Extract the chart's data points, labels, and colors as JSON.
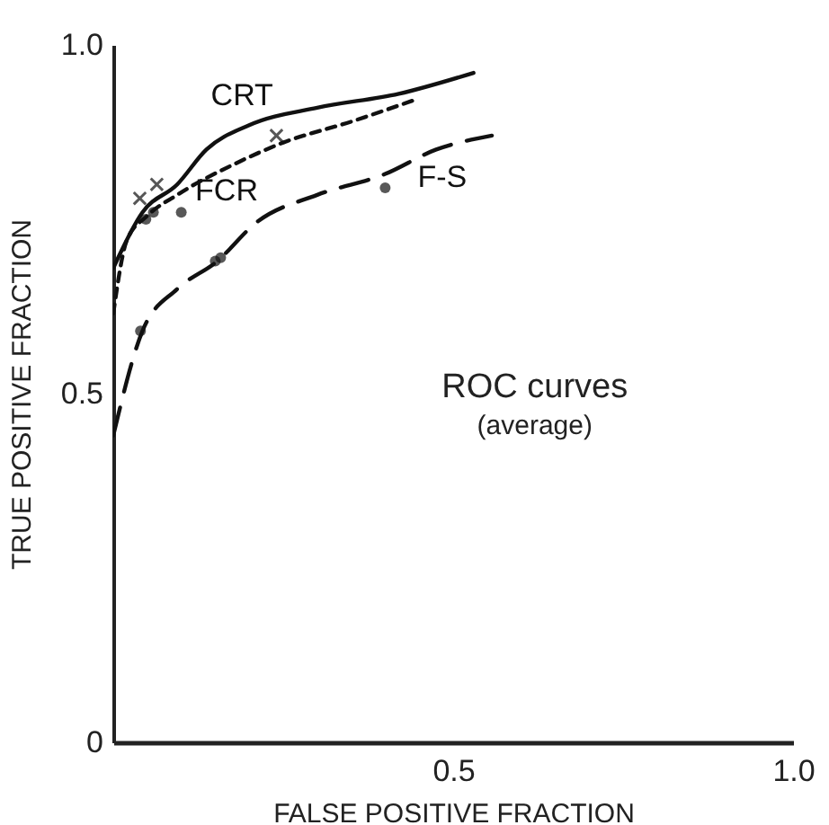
{
  "chart_data": {
    "type": "line",
    "xlabel": "FALSE POSITIVE FRACTION",
    "ylabel": "TRUE POSITIVE FRACTION",
    "annotations": [
      "ROC curves",
      "(average)"
    ],
    "xlim": [
      0,
      1
    ],
    "ylim": [
      0,
      1
    ],
    "xticks": [
      0.5,
      {
        "value": 1,
        "label": "1.0"
      }
    ],
    "yticks": [
      0,
      0.5,
      {
        "value": 1,
        "label": "1.0"
      }
    ],
    "series": [
      {
        "name": "CRT",
        "line_style": "solid",
        "color": "#111111",
        "x": [
          0,
          0.043,
          0.094,
          0.137,
          0.2,
          0.3,
          0.42,
          0.53
        ],
        "values": [
          0.68,
          0.76,
          0.8,
          0.85,
          0.885,
          0.91,
          0.93,
          0.96
        ]
      },
      {
        "name": "FCR",
        "line_style": "dotted",
        "color": "#111111",
        "x": [
          0,
          0.02,
          0.05,
          0.094,
          0.18,
          0.25,
          0.35,
          0.44
        ],
        "values": [
          0.615,
          0.72,
          0.755,
          0.785,
          0.83,
          0.86,
          0.89,
          0.92
        ]
      },
      {
        "name": "F-S",
        "line_style": "dashed",
        "color": "#111111",
        "x": [
          0,
          0.043,
          0.094,
          0.153,
          0.21,
          0.3,
          0.4,
          0.475,
          0.557
        ],
        "values": [
          0.44,
          0.59,
          0.65,
          0.69,
          0.745,
          0.785,
          0.815,
          0.85,
          0.87
        ]
      },
      {
        "type": "scatter",
        "marker": "cross",
        "color": "#111111",
        "x": [
          0.039,
          0.064,
          0.24
        ],
        "values": [
          0.78,
          0.8,
          0.87
        ]
      },
      {
        "type": "scatter",
        "marker": "circle",
        "color": "#111111",
        "x": [
          0.048,
          0.059,
          0.1
        ],
        "values": [
          0.75,
          0.76,
          0.76
        ]
      },
      {
        "type": "scatter",
        "marker": "circle",
        "color": "#111111",
        "x": [
          0.04,
          0.15,
          0.158,
          0.4
        ],
        "values": [
          0.59,
          0.69,
          0.695,
          0.795
        ]
      }
    ]
  }
}
